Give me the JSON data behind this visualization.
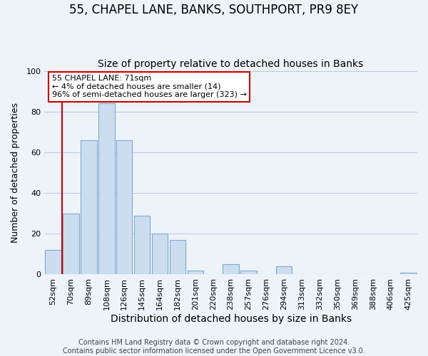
{
  "title": "55, CHAPEL LANE, BANKS, SOUTHPORT, PR9 8EY",
  "subtitle": "Size of property relative to detached houses in Banks",
  "xlabel": "Distribution of detached houses by size in Banks",
  "ylabel": "Number of detached properties",
  "bar_labels": [
    "52sqm",
    "70sqm",
    "89sqm",
    "108sqm",
    "126sqm",
    "145sqm",
    "164sqm",
    "182sqm",
    "201sqm",
    "220sqm",
    "238sqm",
    "257sqm",
    "276sqm",
    "294sqm",
    "313sqm",
    "332sqm",
    "350sqm",
    "369sqm",
    "388sqm",
    "406sqm",
    "425sqm"
  ],
  "bar_values": [
    12,
    30,
    66,
    84,
    66,
    29,
    20,
    17,
    2,
    0,
    5,
    2,
    0,
    4,
    0,
    0,
    0,
    0,
    0,
    0,
    1
  ],
  "bar_color": "#cdddf0",
  "bar_edge_color": "#7aaad0",
  "ylim": [
    0,
    100
  ],
  "yticks": [
    0,
    20,
    40,
    60,
    80,
    100
  ],
  "property_line_label": "55 CHAPEL LANE: 71sqm",
  "annotation_line1": "← 4% of detached houses are smaller (14)",
  "annotation_line2": "96% of semi-detached houses are larger (323) →",
  "annotation_box_color": "#ffffff",
  "annotation_box_edge_color": "#cc0000",
  "vline_color": "#cc0000",
  "vline_x_index": 1,
  "bg_color": "#eef2f9",
  "footer1": "Contains HM Land Registry data © Crown copyright and database right 2024.",
  "footer2": "Contains public sector information licensed under the Open Government Licence v3.0.",
  "title_fontsize": 12,
  "subtitle_fontsize": 10,
  "xlabel_fontsize": 10,
  "ylabel_fontsize": 9,
  "tick_fontsize": 8,
  "footer_fontsize": 7
}
